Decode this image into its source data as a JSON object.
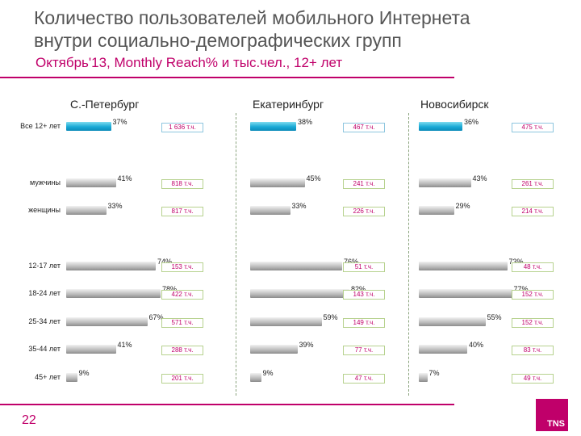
{
  "header": {
    "title_line1": "Количество пользователей мобильного Интернета",
    "title_line2": "внутри социально-демографических групп",
    "subtitle": "Октябрь'13, Monthly Reach% и тыс.чел., 12+ лет"
  },
  "footer": {
    "slide_number": "22",
    "logo_text": "TNS"
  },
  "colors": {
    "accent": "#c0006a",
    "bar_total": "#1aa9d6",
    "bar_group": "#a6a6a6"
  },
  "chart_data": {
    "type": "bar",
    "orientation": "horizontal",
    "title": "Количество пользователей мобильного Интернета внутри социально-демографических групп",
    "subtitle": "Октябрь'13, Monthly Reach% и тыс.чел., 12+ лет",
    "categories": [
      "Все 12+ лет",
      "мужчины",
      "женщины",
      "12-17 лет",
      "18-24 лет",
      "25-34 лет",
      "35-44 лет",
      "45+ лет"
    ],
    "xlim": [
      0,
      100
    ],
    "series": [
      {
        "name": "С.-Петербург",
        "values": [
          37,
          41,
          33,
          74,
          78,
          67,
          41,
          9
        ],
        "percent_labels": [
          "37%",
          "41%",
          "33%",
          "74%",
          "78%",
          "67%",
          "41%",
          "9%"
        ],
        "counts": [
          "1 636 т.ч.",
          "818 т.ч.",
          "817 т.ч.",
          "153 т.ч.",
          "422 т.ч.",
          "571 т.ч.",
          "288 т.ч.",
          "201 т.ч."
        ]
      },
      {
        "name": "Екатеринбург",
        "values": [
          38,
          45,
          33,
          76,
          82,
          59,
          39,
          9
        ],
        "percent_labels": [
          "38%",
          "45%",
          "33%",
          "76%",
          "82%",
          "59%",
          "39%",
          "9%"
        ],
        "counts": [
          "467 т.ч.",
          "241 т.ч.",
          "226 т.ч.",
          "51 т.ч.",
          "143 т.ч.",
          "149 т.ч.",
          "77 т.ч.",
          "47 т.ч."
        ]
      },
      {
        "name": "Новосибирск",
        "values": [
          36,
          43,
          29,
          73,
          77,
          55,
          40,
          7
        ],
        "percent_labels": [
          "36%",
          "43%",
          "29%",
          "73%",
          "77%",
          "55%",
          "40%",
          "7%"
        ],
        "counts": [
          "475 т.ч.",
          "261 т.ч.",
          "214 т.ч.",
          "48 т.ч.",
          "152 т.ч.",
          "152 т.ч.",
          "83 т.ч.",
          "49 т.ч."
        ]
      }
    ]
  }
}
